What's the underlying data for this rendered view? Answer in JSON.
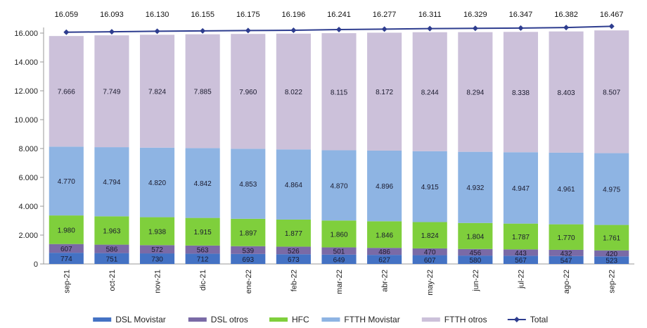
{
  "chart_data": {
    "type": "bar",
    "stacked": true,
    "title": "",
    "xlabel": "",
    "ylabel": "",
    "ylim": [
      0,
      16000
    ],
    "yticks": [
      0,
      2000,
      4000,
      6000,
      8000,
      10000,
      12000,
      14000,
      16000
    ],
    "ytick_labels": [
      "0",
      "2.000",
      "4.000",
      "6.000",
      "8.000",
      "10.000",
      "12.000",
      "14.000",
      "16.000"
    ],
    "grid": false,
    "legend_position": "bottom",
    "categories": [
      "sep-21",
      "oct-21",
      "nov-21",
      "dic-21",
      "ene-22",
      "feb-22",
      "mar-22",
      "abr-22",
      "may-22",
      "jun-22",
      "jul-22",
      "ago-22",
      "sep-22"
    ],
    "series": [
      {
        "name": "DSL Movistar",
        "color": "#4472c4",
        "values": [
          774,
          751,
          730,
          712,
          693,
          673,
          649,
          627,
          607,
          580,
          567,
          547,
          523
        ],
        "labels": [
          "774",
          "751",
          "730",
          "712",
          "693",
          "673",
          "649",
          "627",
          "607",
          "580",
          "567",
          "547",
          "523"
        ]
      },
      {
        "name": "DSL otros",
        "color": "#7a6aa6",
        "values": [
          607,
          586,
          572,
          563,
          539,
          526,
          501,
          486,
          470,
          456,
          443,
          432,
          420
        ],
        "labels": [
          "607",
          "586",
          "572",
          "563",
          "539",
          "526",
          "501",
          "486",
          "470",
          "456",
          "443",
          "432",
          "420"
        ]
      },
      {
        "name": "HFC",
        "color": "#7fcf3c",
        "values": [
          1980,
          1963,
          1938,
          1915,
          1897,
          1877,
          1860,
          1846,
          1824,
          1804,
          1787,
          1770,
          1761
        ],
        "labels": [
          "1.980",
          "1.963",
          "1.938",
          "1.915",
          "1.897",
          "1.877",
          "1.860",
          "1.846",
          "1.824",
          "1.804",
          "1.787",
          "1.770",
          "1.761"
        ]
      },
      {
        "name": "FTTH Movistar",
        "color": "#8eb4e3",
        "values": [
          4770,
          4794,
          4820,
          4842,
          4853,
          4864,
          4870,
          4896,
          4915,
          4932,
          4947,
          4961,
          4975
        ],
        "labels": [
          "4.770",
          "4.794",
          "4.820",
          "4.842",
          "4.853",
          "4.864",
          "4.870",
          "4.896",
          "4.915",
          "4.932",
          "4.947",
          "4.961",
          "4.975"
        ]
      },
      {
        "name": "FTTH otros",
        "color": "#ccc1da",
        "values": [
          7666,
          7749,
          7824,
          7885,
          7960,
          8022,
          8115,
          8172,
          8244,
          8294,
          8338,
          8403,
          8507
        ],
        "labels": [
          "7.666",
          "7.749",
          "7.824",
          "7.885",
          "7.960",
          "8.022",
          "8.115",
          "8.172",
          "8.244",
          "8.294",
          "8.338",
          "8.403",
          "8.507"
        ]
      }
    ],
    "total": {
      "name": "Total",
      "type": "line",
      "color": "#2e3d8f",
      "values": [
        16059,
        16093,
        16130,
        16155,
        16175,
        16196,
        16241,
        16277,
        16311,
        16329,
        16347,
        16382,
        16467
      ],
      "labels": [
        "16.059",
        "16.093",
        "16.130",
        "16.155",
        "16.175",
        "16.196",
        "16.241",
        "16.277",
        "16.311",
        "16.329",
        "16.347",
        "16.382",
        "16.467"
      ]
    }
  }
}
